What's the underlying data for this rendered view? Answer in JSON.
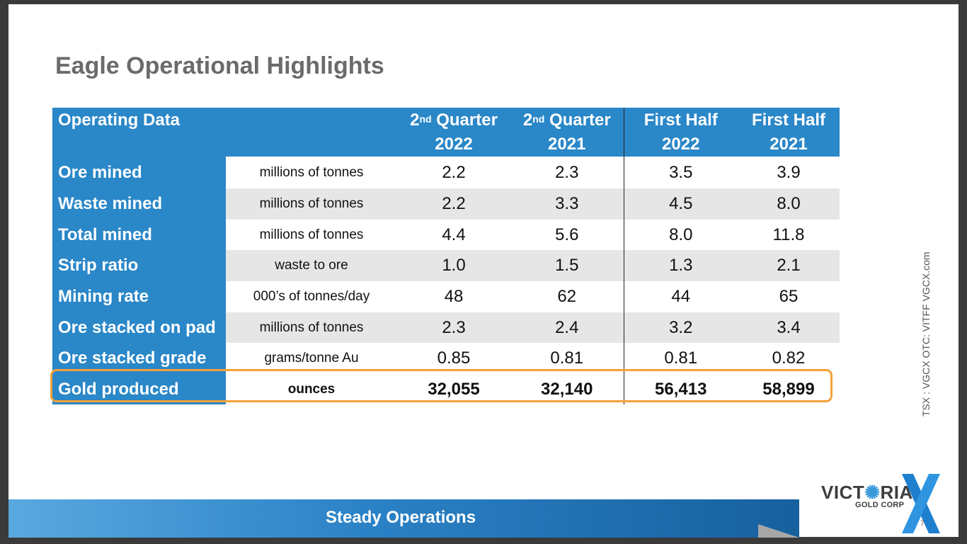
{
  "slide": {
    "title": "Eagle Operational Highlights",
    "banner": "Steady Operations",
    "side_text": "TSX : VGCX    OTC: VITFF    VGCX.com",
    "page_number": "7",
    "logo": {
      "name_part1": "VICT",
      "name_part2": "RIA",
      "sub": "GOLD CORP",
      "mark": "X"
    }
  },
  "table": {
    "header_label": "Operating Data",
    "columns": [
      {
        "top": "Quarter",
        "sup": "nd",
        "prefix": "2",
        "bottom": "2022"
      },
      {
        "top": "Quarter",
        "sup": "nd",
        "prefix": "2",
        "bottom": "2021"
      },
      {
        "top": "First Half",
        "sup": "",
        "prefix": "",
        "bottom": "2022"
      },
      {
        "top": "First Half",
        "sup": "",
        "prefix": "",
        "bottom": "2021"
      }
    ],
    "rows": [
      {
        "label": "Ore mined",
        "unit": "millions of tonnes",
        "values": [
          "2.2",
          "2.3",
          "3.5",
          "3.9"
        ]
      },
      {
        "label": "Waste mined",
        "unit": "millions of tonnes",
        "values": [
          "2.2",
          "3.3",
          "4.5",
          "8.0"
        ]
      },
      {
        "label": "Total mined",
        "unit": "millions of tonnes",
        "values": [
          "4.4",
          "5.6",
          "8.0",
          "11.8"
        ]
      },
      {
        "label": "Strip ratio",
        "unit": "waste to ore",
        "values": [
          "1.0",
          "1.5",
          "1.3",
          "2.1"
        ]
      },
      {
        "label": "Mining rate",
        "unit": "000’s of tonnes/day",
        "values": [
          "48",
          "62",
          "44",
          "65"
        ]
      },
      {
        "label": "Ore stacked on pad",
        "unit": "millions of tonnes",
        "values": [
          "2.3",
          "2.4",
          "3.2",
          "3.4"
        ]
      },
      {
        "label": "Ore stacked grade",
        "unit": "grams/tonne Au",
        "values": [
          "0.85",
          "0.81",
          "0.81",
          "0.82"
        ]
      },
      {
        "label": "Gold produced",
        "unit": "ounces",
        "values": [
          "32,055",
          "32,140",
          "56,413",
          "58,899"
        ]
      }
    ]
  },
  "colors": {
    "table_blue": "#2a87c8",
    "highlight_orange": "#f4a23a",
    "title_gray": "#6b6b6b",
    "row_alt": "#e6e6e6"
  }
}
